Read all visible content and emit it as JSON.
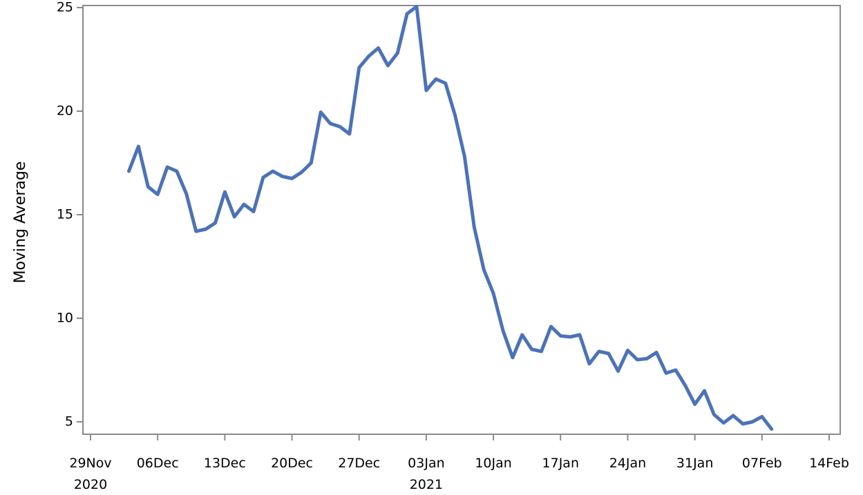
{
  "chart_data": {
    "type": "line",
    "ylabel": "Moving Average",
    "xlabel": "",
    "ylim": [
      4.4,
      25.1
    ],
    "yticks": [
      5,
      10,
      15,
      20,
      25
    ],
    "xlim": [
      "2020-11-29",
      "2021-02-14"
    ],
    "xticks": [
      {
        "date": "2020-11-29",
        "label": "29Nov",
        "sublabel": "2020"
      },
      {
        "date": "2020-12-06",
        "label": "06Dec",
        "sublabel": ""
      },
      {
        "date": "2020-12-13",
        "label": "13Dec",
        "sublabel": ""
      },
      {
        "date": "2020-12-20",
        "label": "20Dec",
        "sublabel": ""
      },
      {
        "date": "2020-12-27",
        "label": "27Dec",
        "sublabel": ""
      },
      {
        "date": "2021-01-03",
        "label": "03Jan",
        "sublabel": "2021"
      },
      {
        "date": "2021-01-10",
        "label": "10Jan",
        "sublabel": ""
      },
      {
        "date": "2021-01-17",
        "label": "17Jan",
        "sublabel": ""
      },
      {
        "date": "2021-01-24",
        "label": "24Jan",
        "sublabel": ""
      },
      {
        "date": "2021-01-31",
        "label": "31Jan",
        "sublabel": ""
      },
      {
        "date": "2021-02-07",
        "label": "07Feb",
        "sublabel": ""
      },
      {
        "date": "2021-02-14",
        "label": "14Feb",
        "sublabel": ""
      }
    ],
    "grid": false,
    "series": [
      {
        "color": "#4C72B8",
        "x": [
          "2020-12-03",
          "2020-12-04",
          "2020-12-05",
          "2020-12-06",
          "2020-12-07",
          "2020-12-08",
          "2020-12-09",
          "2020-12-10",
          "2020-12-11",
          "2020-12-12",
          "2020-12-13",
          "2020-12-14",
          "2020-12-15",
          "2020-12-16",
          "2020-12-17",
          "2020-12-18",
          "2020-12-19",
          "2020-12-20",
          "2020-12-21",
          "2020-12-22",
          "2020-12-23",
          "2020-12-24",
          "2020-12-25",
          "2020-12-26",
          "2020-12-27",
          "2020-12-28",
          "2020-12-29",
          "2020-12-30",
          "2020-12-31",
          "2021-01-01",
          "2021-01-02",
          "2021-01-03",
          "2021-01-04",
          "2021-01-05",
          "2021-01-06",
          "2021-01-07",
          "2021-01-08",
          "2021-01-09",
          "2021-01-10",
          "2021-01-11",
          "2021-01-12",
          "2021-01-13",
          "2021-01-14",
          "2021-01-15",
          "2021-01-16",
          "2021-01-17",
          "2021-01-18",
          "2021-01-19",
          "2021-01-20",
          "2021-01-21",
          "2021-01-22",
          "2021-01-23",
          "2021-01-24",
          "2021-01-25",
          "2021-01-26",
          "2021-01-27",
          "2021-01-28",
          "2021-01-29",
          "2021-01-30",
          "2021-01-31",
          "2021-02-01",
          "2021-02-02",
          "2021-02-03",
          "2021-02-04",
          "2021-02-05",
          "2021-02-06",
          "2021-02-07",
          "2021-02-08"
        ],
        "values": [
          17.1,
          18.3,
          16.35,
          15.98,
          17.3,
          17.1,
          16.0,
          14.2,
          14.3,
          14.6,
          16.1,
          14.9,
          15.5,
          15.15,
          16.8,
          17.1,
          16.85,
          16.75,
          17.05,
          17.5,
          19.95,
          19.4,
          19.25,
          18.9,
          22.1,
          22.65,
          23.05,
          22.2,
          22.8,
          24.7,
          25.05,
          21.0,
          21.55,
          21.35,
          19.8,
          17.8,
          14.4,
          12.35,
          11.2,
          9.4,
          8.1,
          9.2,
          8.5,
          8.4,
          9.6,
          9.15,
          9.1,
          9.2,
          7.8,
          8.4,
          8.3,
          7.45,
          8.45,
          8.0,
          8.05,
          8.35,
          7.35,
          7.5,
          6.75,
          5.85,
          6.5,
          5.35,
          4.95,
          5.3,
          4.9,
          5.0,
          5.25,
          4.65
        ]
      }
    ]
  }
}
